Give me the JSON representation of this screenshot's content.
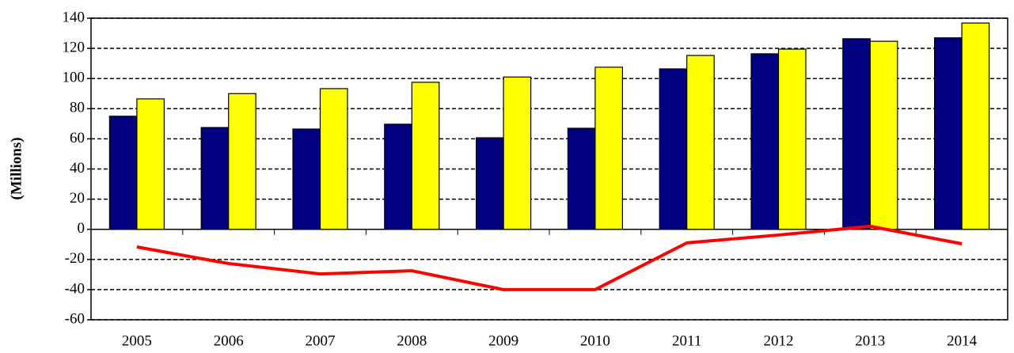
{
  "chart_data": {
    "type": "bar",
    "y_label": "(Millions)",
    "categories": [
      "2005",
      "2006",
      "2007",
      "2008",
      "2009",
      "2010",
      "2011",
      "2012",
      "2013",
      "2014"
    ],
    "series": [
      {
        "type": "bar",
        "color": "#000080",
        "values": [
          75,
          67.5,
          66.5,
          69.7,
          60.7,
          67,
          106.4,
          116.4,
          126.4,
          127
        ]
      },
      {
        "type": "bar",
        "color": "#ffff00",
        "values": [
          86.5,
          90,
          93.3,
          97.5,
          101,
          107.5,
          115.3,
          119.5,
          124.7,
          136.8
        ]
      },
      {
        "type": "line",
        "color": "#ff0000",
        "values": [
          -11.7,
          -22.7,
          -29.6,
          -27.5,
          -40,
          -40,
          -9,
          -3.8,
          2,
          -9.6
        ]
      }
    ],
    "ylim": [
      -60,
      140
    ],
    "yticks": [
      -60,
      -40,
      -20,
      0,
      20,
      40,
      60,
      80,
      100,
      120,
      140
    ],
    "grid": true
  }
}
